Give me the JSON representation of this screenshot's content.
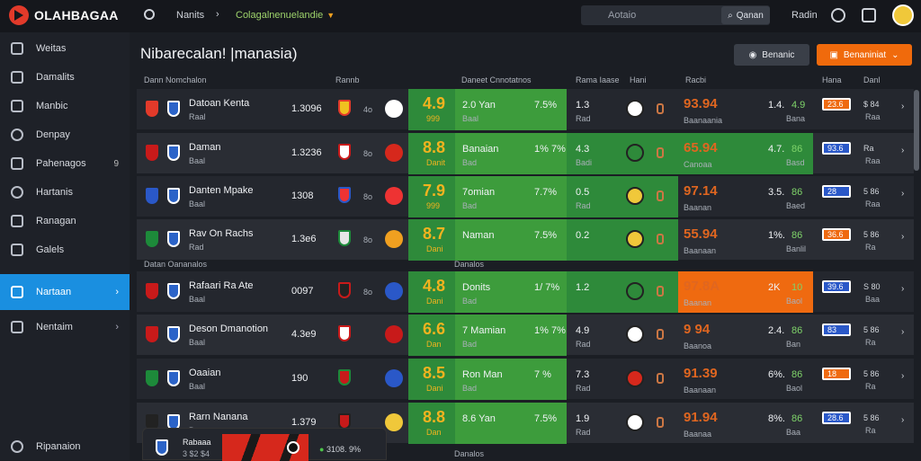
{
  "brand": {
    "name": "OLAHBAGAA"
  },
  "topnav": {
    "item1": "Nanits",
    "item2": "Colagalnenuelandie"
  },
  "search": {
    "placeholder": "Aotaio",
    "button": "Qanan"
  },
  "user": {
    "label": "Radin"
  },
  "sidebar": {
    "items": [
      {
        "label": "Weitas"
      },
      {
        "label": "Damalits"
      },
      {
        "label": "Manbic"
      },
      {
        "label": "Denpay"
      },
      {
        "label": "Pahenagos",
        "badge": "9"
      },
      {
        "label": "Hartanis"
      },
      {
        "label": "Ranagan"
      },
      {
        "label": "Galels"
      },
      {
        "label": "Nartaan"
      },
      {
        "label": "Nentaim"
      }
    ],
    "bottom": "Ripanaion"
  },
  "page": {
    "title": "Nibarecalan! |manasia)",
    "btn_grey": "Benanic",
    "btn_orange": "Benaniniat"
  },
  "columns": [
    "Dann Nomchalon",
    "Rannb",
    "Daneet Cnnotatnos",
    "Rama Iaase",
    "Hani",
    "Racbi",
    "Hana",
    "Danl"
  ],
  "sections": {
    "s1": "Datan Oananalos",
    "s2": "Danalos",
    "s3": "Danalos"
  },
  "rows": [
    {
      "team": "Datoan Kenta",
      "sub": "Raal",
      "score": "1.3096",
      "mini": "4o",
      "big": "4.9",
      "bigsub": "999",
      "pick": "2.0 Yan",
      "picksub": "Baal",
      "pct": "7.5%",
      "m1": "1.3",
      "m1s": "Rad",
      "odds": "93.94",
      "oddsub": "Baanaania",
      "r1": "1.4.",
      "r1b": "4.9",
      "rs": "Bana",
      "tag": "23.6",
      "t2": "$ 84",
      "t2s": "Raa"
    },
    {
      "team": "Daman",
      "sub": "Baal",
      "score": "1.3236",
      "mini": "8o",
      "big": "8.8",
      "bigsub": "Danit",
      "pick": "Banaian",
      "picksub": "Bad",
      "pct": "1% 7%",
      "m1": "4.3",
      "m1s": "Badi",
      "odds": "65.94",
      "oddsub": "Canoaa",
      "r1": "4.7.",
      "r1b": "86",
      "rs": "Basd",
      "tag": "93.6",
      "t2": "Ra",
      "t2s": "Raa"
    },
    {
      "team": "Danten Mpake",
      "sub": "Baal",
      "score": "1308",
      "mini": "8o",
      "big": "7.9",
      "bigsub": "999",
      "pick": "7omian",
      "picksub": "Bad",
      "pct": "7.7%",
      "m1": "0.5",
      "m1s": "Rad",
      "odds": "97.14",
      "oddsub": "Baanan",
      "r1": "3.5.",
      "r1b": "86",
      "rs": "Baed",
      "tag": "28",
      "t2": "5 86",
      "t2s": "Raa"
    },
    {
      "team": "Rav On Rachs",
      "sub": "Rad",
      "score": "1.3e6",
      "mini": "8o",
      "big": "8.7",
      "bigsub": "Dani",
      "pick": "Naman",
      "picksub": "",
      "pct": "7.5%",
      "m1": "0.2",
      "m1s": "",
      "odds": "55.94",
      "oddsub": "Baanaan",
      "r1": "1%.",
      "r1b": "86",
      "rs": "Banlil",
      "tag": "36.6",
      "t2": "5 86",
      "t2s": "Ra"
    },
    {
      "team": "Rafaari Ra Ate",
      "sub": "Baal",
      "score": "0097",
      "mini": "8o",
      "big": "4.8",
      "bigsub": "Dani",
      "pick": "Donits",
      "picksub": "Bad",
      "pct": "1/ 7%",
      "m1": "1.2",
      "m1s": "",
      "odds": "97.8A",
      "oddsub": "Baanan",
      "r1": "2K",
      "r1b": "10",
      "rs": "Baol",
      "tag": "39.6",
      "t2": "S 80",
      "t2s": "Baa"
    },
    {
      "team": "Deson Dmanotion",
      "sub": "Baal",
      "score": "4.3e9",
      "mini": "",
      "big": "6.6",
      "bigsub": "Dan",
      "pick": "7 Mamian",
      "picksub": "Bad",
      "pct": "1% 7%",
      "m1": "4.9",
      "m1s": "Rad",
      "odds": "9 94",
      "oddsub": "Baanoa",
      "r1": "2.4.",
      "r1b": "86",
      "rs": "Ban",
      "tag": "83",
      "t2": "5 86",
      "t2s": "Ra"
    },
    {
      "team": "Oaaian",
      "sub": "Baal",
      "score": "190",
      "mini": "",
      "big": "8.5",
      "bigsub": "Dani",
      "pick": "Ron Man",
      "picksub": "Bad",
      "pct": "7 %",
      "m1": "7.3",
      "m1s": "Rad",
      "odds": "91.39",
      "oddsub": "Baanaan",
      "r1": "6%.",
      "r1b": "86",
      "rs": "Baol",
      "tag": "18",
      "t2": "5 86",
      "t2s": "Ra"
    },
    {
      "team": "Rarn Nanana",
      "sub": "Ban",
      "score": "1.379",
      "mini": "",
      "big": "8.8",
      "bigsub": "Dan",
      "pick": "8.6 Yan",
      "picksub": "",
      "pct": "7.5%",
      "m1": "1.9",
      "m1s": "Rad",
      "odds": "91.94",
      "oddsub": "Baanaa",
      "r1": "8%.",
      "r1b": "86",
      "rs": "Baa",
      "tag": "28.6",
      "t2": "5 86",
      "t2s": "Ra"
    }
  ],
  "toast": {
    "title": "Rabaaa",
    "sub": "3 $2 $4",
    "meta": "3108. 9%"
  }
}
